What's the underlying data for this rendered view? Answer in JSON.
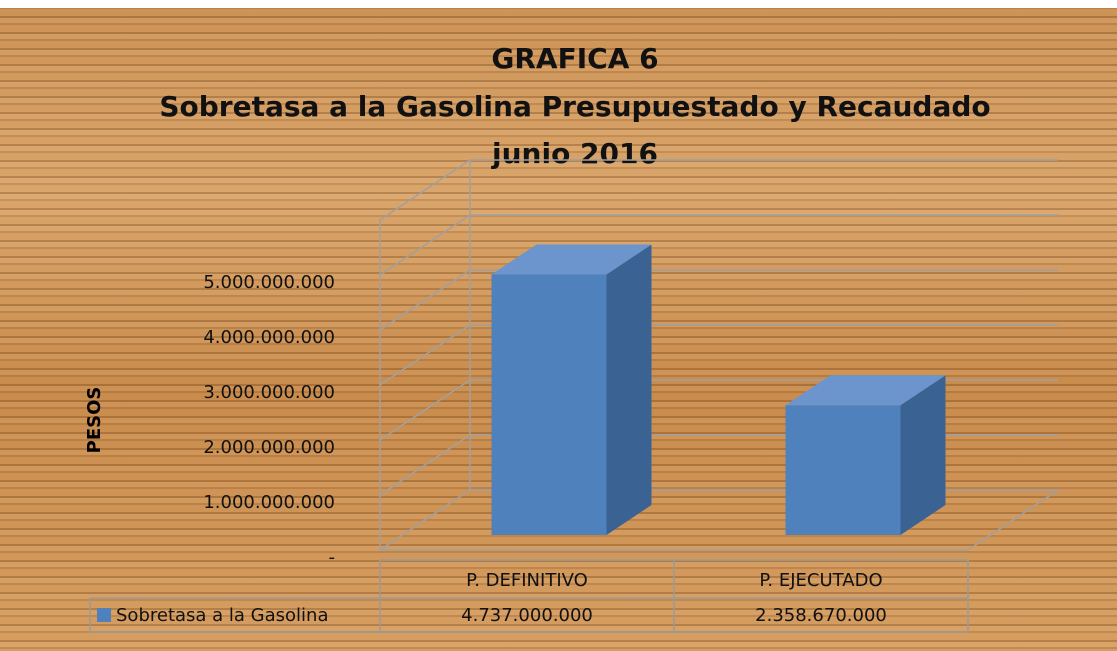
{
  "chart_data": {
    "type": "bar3d",
    "title": "GRAFICA 6",
    "subtitle": "Sobretasa a la Gasolina Presupuestado y Recaudado",
    "period": "junio 2016",
    "y_label": "PESOS",
    "categories": [
      "P. DEFINITIVO",
      "P. EJECUTADO"
    ],
    "series": [
      {
        "name": "Sobretasa a la Gasolina",
        "color": "#4f81bd",
        "values": [
          4737000000,
          2358670000
        ],
        "value_labels": [
          "4.737.000.000",
          "2.358.670.000"
        ]
      }
    ],
    "ylim": [
      0,
      6000000000
    ],
    "yticks": [
      {
        "value": 0,
        "label": "-"
      },
      {
        "value": 1000000000,
        "label": "1.000.000.000"
      },
      {
        "value": 2000000000,
        "label": "2.000.000.000"
      },
      {
        "value": 3000000000,
        "label": "3.000.000.000"
      },
      {
        "value": 4000000000,
        "label": "4.000.000.000"
      },
      {
        "value": 5000000000,
        "label": "5.000.000.000"
      }
    ],
    "grid": true
  }
}
